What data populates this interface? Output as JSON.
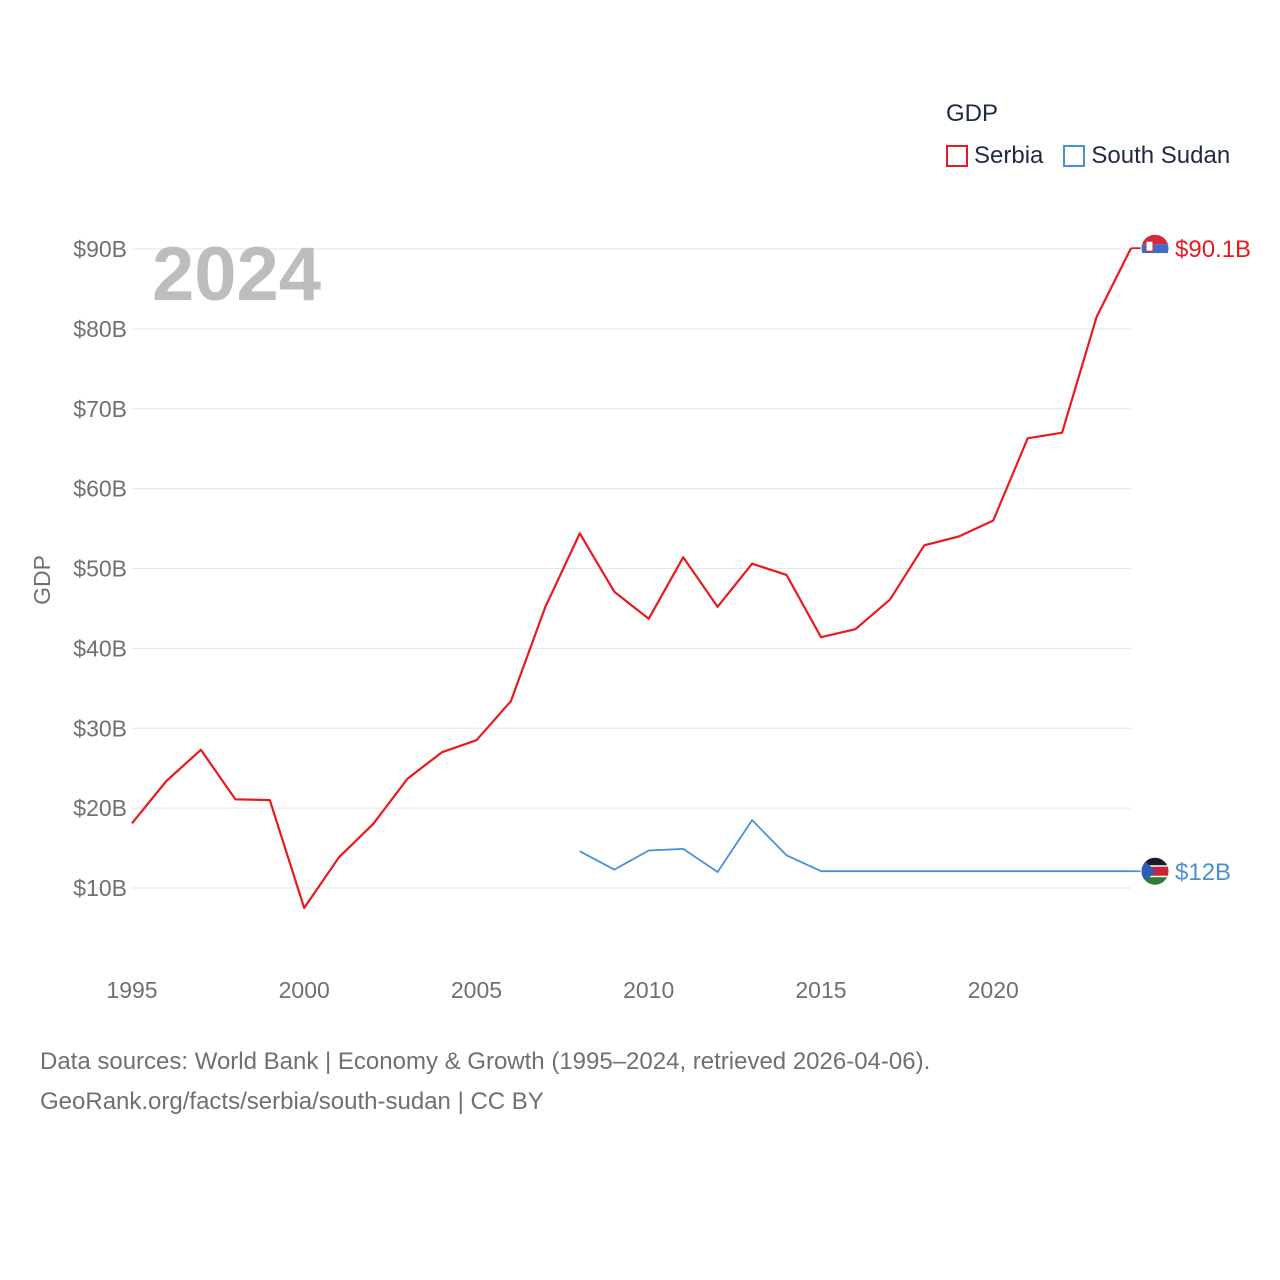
{
  "legend": {
    "title": "GDP",
    "items": [
      {
        "name": "Serbia",
        "color": "#e8191f"
      },
      {
        "name": "South Sudan",
        "color": "#4a90d9"
      }
    ]
  },
  "year_label": "2024",
  "source_line1": "Data sources: World Bank | Economy & Growth (1995–2024, retrieved 2026-04-06).",
  "source_line2": "GeoRank.org/facts/serbia/south-sudan | CC BY",
  "chart_data": {
    "type": "line",
    "title": "",
    "xlabel": "",
    "ylabel": "GDP",
    "xlim": [
      1995,
      2024
    ],
    "ylim": [
      0,
      90
    ],
    "x_ticks": [
      1995,
      2000,
      2005,
      2010,
      2015,
      2020
    ],
    "x_tick_labels": [
      "1995",
      "2000",
      "2005",
      "2010",
      "2015",
      "2020"
    ],
    "y_ticks": [
      10,
      20,
      30,
      40,
      50,
      60,
      70,
      80,
      90
    ],
    "y_tick_labels": [
      "$10B",
      "$20B",
      "$30B",
      "$40B",
      "$50B",
      "$60B",
      "$70B",
      "$80B",
      "$90B"
    ],
    "unit": "USD billions",
    "series": [
      {
        "name": "Serbia",
        "color": "#e8191f",
        "end_label": "$90.1B",
        "flag_icon": "serbia-flag-icon",
        "x": [
          1995,
          1996,
          1997,
          1998,
          1999,
          2000,
          2001,
          2002,
          2003,
          2004,
          2005,
          2006,
          2007,
          2008,
          2009,
          2010,
          2011,
          2012,
          2013,
          2014,
          2015,
          2016,
          2017,
          2018,
          2019,
          2020,
          2021,
          2022,
          2023,
          2024
        ],
        "values": [
          18.1,
          23.4,
          27.3,
          21.1,
          21.0,
          7.5,
          13.8,
          18.0,
          23.7,
          27.0,
          28.5,
          33.4,
          45.2,
          54.4,
          47.1,
          43.7,
          51.4,
          45.2,
          50.6,
          49.2,
          41.4,
          42.4,
          46.1,
          52.9,
          54.0,
          56.0,
          66.3,
          67.0,
          81.5,
          90.1
        ]
      },
      {
        "name": "South Sudan",
        "color": "#4a90d9",
        "end_label": "$12B",
        "flag_icon": "south-sudan-flag-icon",
        "x": [
          2008,
          2009,
          2010,
          2011,
          2012,
          2013,
          2014,
          2015,
          2016,
          2017,
          2018,
          2019,
          2020,
          2021,
          2022,
          2023,
          2024
        ],
        "values": [
          14.6,
          12.3,
          14.7,
          14.9,
          12.0,
          18.5,
          14.1,
          12.1,
          12.1,
          12.1,
          12.1,
          12.1,
          12.1,
          12.1,
          12.1,
          12.1,
          12.1
        ]
      }
    ]
  }
}
